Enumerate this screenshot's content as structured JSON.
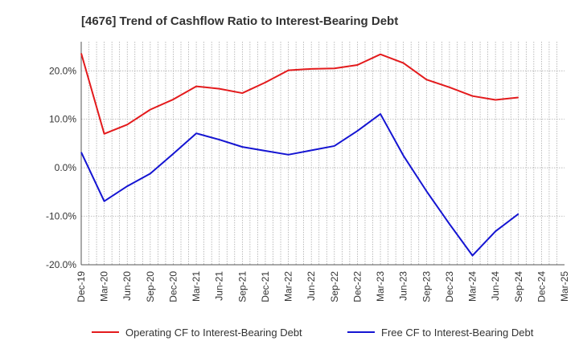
{
  "chart_data": {
    "type": "line",
    "title": "[4676]  Trend of Cashflow Ratio to Interest-Bearing Debt",
    "xlabel": "",
    "ylabel": "",
    "categories": [
      "Dec-19",
      "Mar-20",
      "Jun-20",
      "Sep-20",
      "Dec-20",
      "Mar-21",
      "Jun-21",
      "Sep-21",
      "Dec-21",
      "Mar-22",
      "Jun-22",
      "Sep-22",
      "Dec-22",
      "Mar-23",
      "Jun-23",
      "Sep-23",
      "Dec-23",
      "Mar-24",
      "Jun-24",
      "Sep-24",
      "Dec-24",
      "Mar-25"
    ],
    "ylim": [
      -20,
      26
    ],
    "yticks": [
      -20,
      -10,
      0,
      10,
      20
    ],
    "ytick_labels": [
      "-20.0%",
      "-10.0%",
      "0.0%",
      "10.0%",
      "20.0%"
    ],
    "grid": true,
    "legend_position": "bottom",
    "series": [
      {
        "name": "Operating CF to Interest-Bearing Debt",
        "color": "#e31a1c",
        "values": [
          23.6,
          7.0,
          8.9,
          12.0,
          14.1,
          16.8,
          16.3,
          15.4,
          17.6,
          20.1,
          20.4,
          20.5,
          21.2,
          23.4,
          21.6,
          18.2,
          16.6,
          14.8,
          14.0,
          14.5,
          null,
          null
        ]
      },
      {
        "name": "Free CF to Interest-Bearing Debt",
        "color": "#1414d2",
        "values": [
          3.2,
          -6.9,
          -3.8,
          -1.2,
          2.9,
          7.1,
          5.8,
          4.3,
          3.5,
          2.7,
          3.6,
          4.5,
          7.6,
          11.1,
          2.5,
          -4.8,
          -11.6,
          -18.1,
          -13.1,
          -9.5,
          null,
          null
        ]
      }
    ]
  }
}
